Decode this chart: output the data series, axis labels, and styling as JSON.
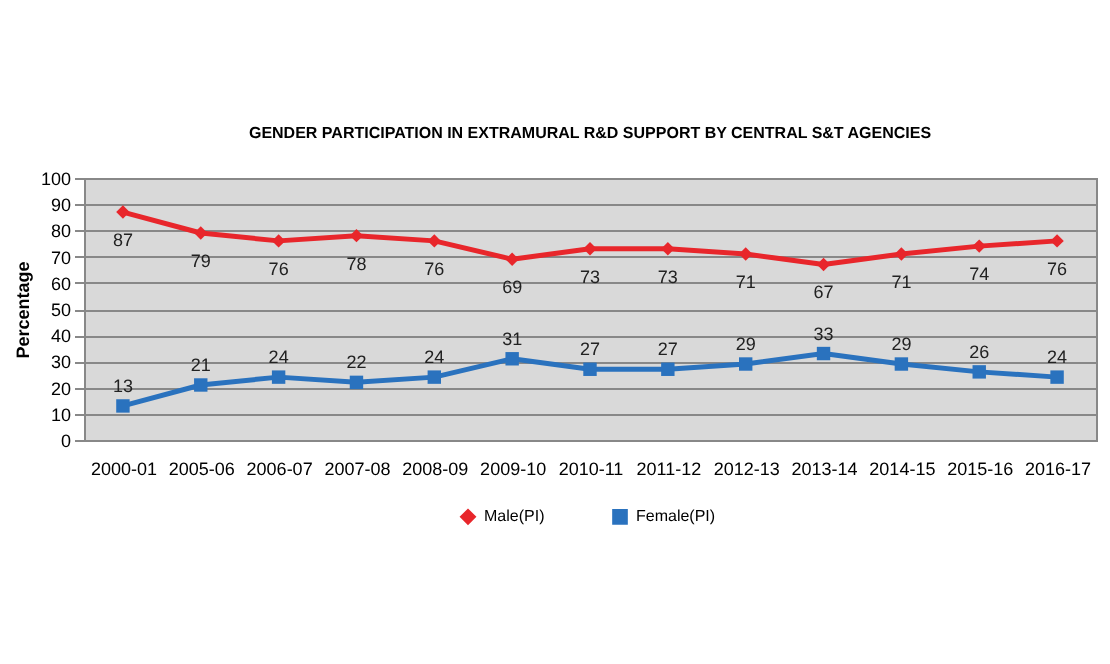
{
  "chart_data": {
    "type": "line",
    "title": "GENDER PARTICIPATION IN EXTRAMURAL R&D SUPPORT BY CENTRAL S&T AGENCIES",
    "ylabel": "Percentage",
    "categories": [
      "2000-01",
      "2005-06",
      "2006-07",
      "2007-08",
      "2008-09",
      "2009-10",
      "2010-11",
      "2011-12",
      "2012-13",
      "2013-14",
      "2014-15",
      "2015-16",
      "2016-17"
    ],
    "series": [
      {
        "name": "Male(PI)",
        "color": "#e8262b",
        "marker": "diamond",
        "values": [
          87,
          79,
          76,
          78,
          76,
          69,
          73,
          73,
          71,
          67,
          71,
          74,
          76
        ]
      },
      {
        "name": "Female(PI)",
        "color": "#2a72be",
        "marker": "square",
        "values": [
          13,
          21,
          24,
          22,
          24,
          31,
          27,
          27,
          29,
          33,
          29,
          26,
          24
        ]
      }
    ],
    "ylim": [
      0,
      100
    ],
    "yticks": [
      0,
      10,
      20,
      30,
      40,
      50,
      60,
      70,
      80,
      90,
      100
    ],
    "grid": "y",
    "legend": "bottom",
    "data_labels": true
  }
}
